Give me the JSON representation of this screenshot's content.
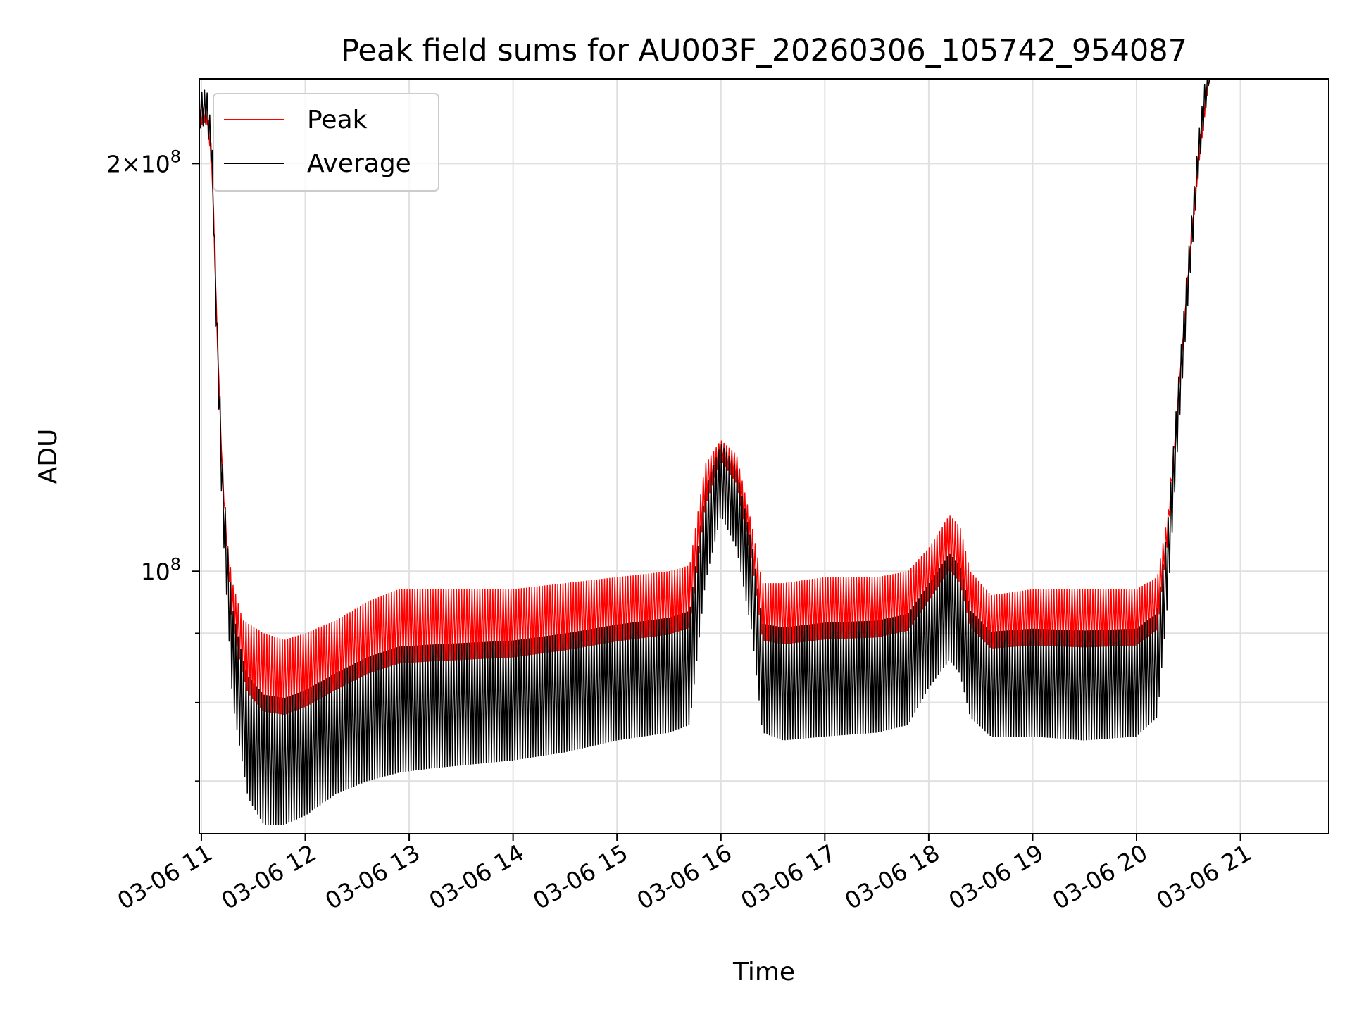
{
  "chart_data": {
    "type": "line",
    "title": "Peak field sums for AU003F_20260306_105742_954087",
    "xlabel": "Time",
    "ylabel": "ADU",
    "yscale": "log",
    "xlim_hours": [
      10.98,
      21.85
    ],
    "ylim": [
      64000000,
      231000000
    ],
    "x_ticks": [
      {
        "hour": 11,
        "label": "03-06 11"
      },
      {
        "hour": 12,
        "label": "03-06 12"
      },
      {
        "hour": 13,
        "label": "03-06 13"
      },
      {
        "hour": 14,
        "label": "03-06 14"
      },
      {
        "hour": 15,
        "label": "03-06 15"
      },
      {
        "hour": 16,
        "label": "03-06 16"
      },
      {
        "hour": 17,
        "label": "03-06 17"
      },
      {
        "hour": 18,
        "label": "03-06 18"
      },
      {
        "hour": 19,
        "label": "03-06 19"
      },
      {
        "hour": 20,
        "label": "03-06 20"
      },
      {
        "hour": 21,
        "label": "03-06 21"
      }
    ],
    "y_major_ticks": [
      {
        "value": 100000000,
        "label": "10",
        "exp": "8"
      },
      {
        "value": 200000000,
        "label": "2×10",
        "exp": "8"
      }
    ],
    "y_minor_ticks": [
      70000000,
      80000000,
      90000000
    ],
    "grid": true,
    "legend": "top-left",
    "series": [
      {
        "name": "Peak",
        "color": "#ff0000",
        "note_shape": "oscillating upper envelope",
        "envelope": [
          [
            10.98,
            213000000
          ],
          [
            11.05,
            215000000
          ],
          [
            11.1,
            200000000
          ],
          [
            11.15,
            150000000
          ],
          [
            11.2,
            120000000
          ],
          [
            11.25,
            105000000
          ],
          [
            11.3,
            98000000
          ],
          [
            11.4,
            92000000
          ],
          [
            11.6,
            90000000
          ],
          [
            11.8,
            89000000
          ],
          [
            12.0,
            90000000
          ],
          [
            12.3,
            92000000
          ],
          [
            12.6,
            95000000
          ],
          [
            12.9,
            97000000
          ],
          [
            13.2,
            97000000
          ],
          [
            13.6,
            97000000
          ],
          [
            14.0,
            97000000
          ],
          [
            14.5,
            98000000
          ],
          [
            15.0,
            99000000
          ],
          [
            15.5,
            100000000
          ],
          [
            15.7,
            101000000
          ],
          [
            15.85,
            120000000
          ],
          [
            16.0,
            125000000
          ],
          [
            16.15,
            122000000
          ],
          [
            16.3,
            108000000
          ],
          [
            16.4,
            98000000
          ],
          [
            16.6,
            98000000
          ],
          [
            17.0,
            99000000
          ],
          [
            17.5,
            99000000
          ],
          [
            17.8,
            100000000
          ],
          [
            18.0,
            104000000
          ],
          [
            18.2,
            110000000
          ],
          [
            18.3,
            108000000
          ],
          [
            18.4,
            100000000
          ],
          [
            18.6,
            96000000
          ],
          [
            19.0,
            97000000
          ],
          [
            19.5,
            97000000
          ],
          [
            20.0,
            97000000
          ],
          [
            20.2,
            99000000
          ],
          [
            20.3,
            110000000
          ],
          [
            20.4,
            135000000
          ],
          [
            20.5,
            165000000
          ],
          [
            20.6,
            200000000
          ],
          [
            20.7,
            231000000
          ],
          [
            21.85,
            231000000
          ]
        ]
      },
      {
        "name": "Average",
        "color": "#000000",
        "note_shape": "oscillating lower envelope",
        "envelope": [
          [
            10.98,
            212000000
          ],
          [
            11.05,
            214000000
          ],
          [
            11.1,
            198000000
          ],
          [
            11.15,
            145000000
          ],
          [
            11.2,
            110000000
          ],
          [
            11.3,
            80000000
          ],
          [
            11.45,
            68000000
          ],
          [
            11.6,
            65000000
          ],
          [
            11.8,
            65000000
          ],
          [
            12.0,
            66000000
          ],
          [
            12.3,
            68500000
          ],
          [
            12.6,
            70000000
          ],
          [
            12.9,
            71000000
          ],
          [
            13.2,
            71500000
          ],
          [
            13.6,
            72000000
          ],
          [
            14.0,
            72500000
          ],
          [
            14.5,
            73500000
          ],
          [
            15.0,
            75000000
          ],
          [
            15.5,
            76000000
          ],
          [
            15.7,
            77000000
          ],
          [
            15.85,
            98000000
          ],
          [
            16.0,
            110000000
          ],
          [
            16.15,
            104000000
          ],
          [
            16.3,
            90000000
          ],
          [
            16.4,
            76000000
          ],
          [
            16.6,
            75000000
          ],
          [
            17.0,
            75500000
          ],
          [
            17.5,
            76000000
          ],
          [
            17.8,
            77000000
          ],
          [
            18.0,
            82000000
          ],
          [
            18.2,
            86000000
          ],
          [
            18.3,
            84000000
          ],
          [
            18.4,
            78000000
          ],
          [
            18.6,
            75500000
          ],
          [
            19.0,
            75500000
          ],
          [
            19.5,
            75000000
          ],
          [
            20.0,
            75500000
          ],
          [
            20.2,
            78000000
          ],
          [
            20.3,
            95000000
          ],
          [
            20.4,
            125000000
          ],
          [
            20.5,
            160000000
          ],
          [
            20.6,
            198000000
          ],
          [
            20.7,
            231000000
          ],
          [
            21.85,
            231000000
          ]
        ]
      }
    ]
  }
}
